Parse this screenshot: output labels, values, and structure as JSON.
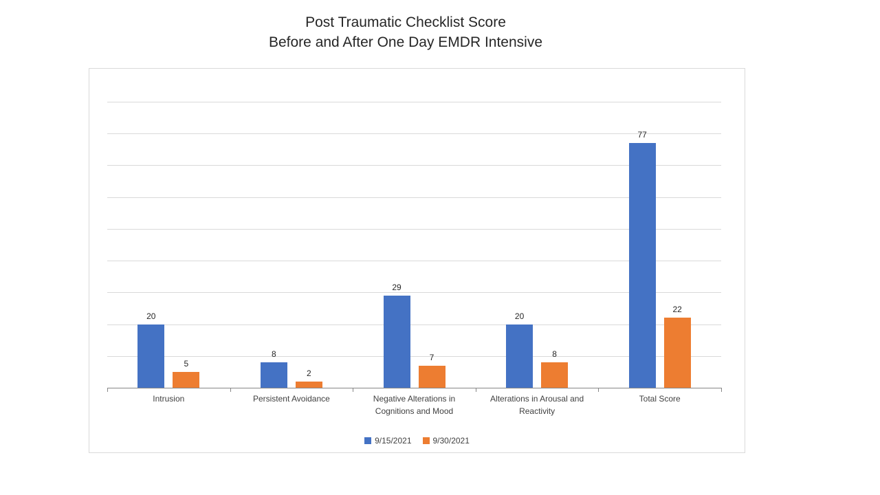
{
  "page": {
    "background_color": "#ffffff"
  },
  "chart_data": {
    "type": "bar",
    "title_lines": [
      "Post Traumatic Checklist Score",
      "Before and After One Day EMDR Intensive"
    ],
    "categories": [
      "Intrusion",
      "Persistent Avoidance",
      "Negative Alterations in Cognitions and Mood",
      "Alterations in Arousal and Reactivity",
      "Total Score"
    ],
    "series": [
      {
        "name": "9/15/2021",
        "color": "#4472C4",
        "values": [
          20,
          8,
          29,
          20,
          77
        ]
      },
      {
        "name": "9/30/2021",
        "color": "#ED7D31",
        "values": [
          5,
          2,
          7,
          8,
          22
        ]
      }
    ],
    "ylim": [
      0,
      90
    ],
    "grid_step": 10,
    "grid": true,
    "y_axis_labels_visible": false,
    "data_labels_visible": true,
    "legend_position": "bottom",
    "colors": {
      "gridline": "#d9d9d9",
      "axis_line": "#868686",
      "chart_border": "#d9d9d9",
      "label_text": "#404040",
      "value_text": "#262626",
      "title_text": "#262626"
    }
  }
}
